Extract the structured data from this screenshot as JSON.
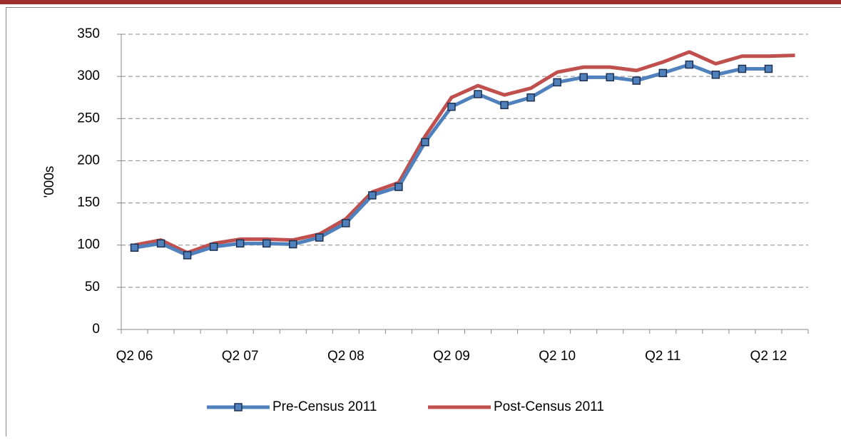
{
  "chart_data": {
    "type": "line",
    "ylabel": "'000s",
    "categories": [
      "Q2 06",
      null,
      null,
      null,
      "Q2 07",
      null,
      null,
      null,
      "Q2 08",
      null,
      null,
      null,
      "Q2 09",
      null,
      null,
      null,
      "Q2 10",
      null,
      null,
      null,
      "Q2 11",
      null,
      null,
      null,
      "Q2 12",
      null
    ],
    "series": [
      {
        "name": "Pre-Census 2011",
        "color": "#4f81bd",
        "marker": "square",
        "values": [
          97,
          102,
          88,
          98,
          102,
          102,
          101,
          109,
          126,
          159,
          169,
          222,
          264,
          279,
          266,
          275,
          293,
          299,
          299,
          295,
          304,
          314,
          302,
          309,
          309,
          null
        ]
      },
      {
        "name": "Post-Census 2011",
        "color": "#c0504d",
        "values": [
          100,
          106,
          91,
          102,
          107,
          107,
          106,
          113,
          131,
          163,
          174,
          229,
          275,
          289,
          278,
          286,
          305,
          311,
          311,
          307,
          317,
          329,
          315,
          324,
          324,
          325
        ]
      }
    ],
    "ylim": [
      0,
      350
    ],
    "yticks": [
      0,
      50,
      100,
      150,
      200,
      250,
      300,
      350
    ],
    "grid": true
  }
}
